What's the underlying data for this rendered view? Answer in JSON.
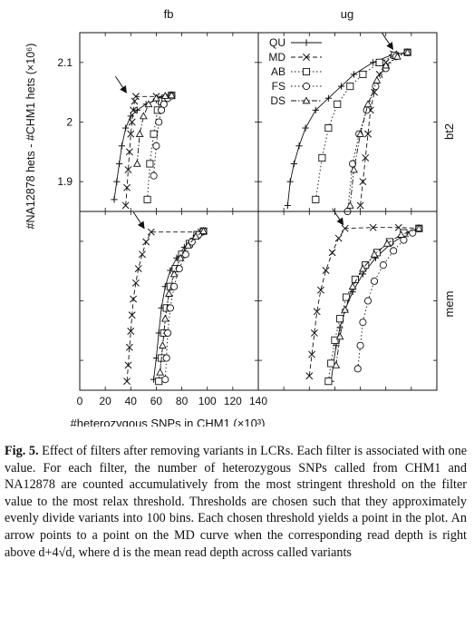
{
  "chart_data": {
    "type": "line",
    "columns": [
      "fb",
      "ug"
    ],
    "rows": [
      "bt2",
      "mem"
    ],
    "ylabel": "#NA12878 hets - #CHM1 hets (×10⁶)",
    "xlabel": "#heterozygous SNPs in CHM1 (×10³)",
    "x_ticks": [
      "0",
      "20",
      "40",
      "60",
      "80",
      "100",
      "120",
      "140"
    ],
    "xlim": [
      0,
      140
    ],
    "y_ticks_bt2": [
      "1.9",
      "2",
      "2.1"
    ],
    "ylim_bt2": [
      1.85,
      2.15
    ],
    "legend_placement": "top-left of top-right panel",
    "series": [
      {
        "name": "QU",
        "marker": "plus",
        "dash": "solid"
      },
      {
        "name": "MD",
        "marker": "cross",
        "dash": "dashed"
      },
      {
        "name": "AB",
        "marker": "square",
        "dash": "dotted"
      },
      {
        "name": "FS",
        "marker": "circle",
        "dash": "dotted"
      },
      {
        "name": "DS",
        "marker": "triangle",
        "dash": "dashdot"
      }
    ],
    "panels": [
      {
        "col": "fb",
        "row": "bt2",
        "arrow_at": [
          38,
          2.043
        ],
        "data": {
          "QU": [
            [
              27,
              1.87
            ],
            [
              29,
              1.9
            ],
            [
              31,
              1.93
            ],
            [
              33,
              1.96
            ],
            [
              36,
              1.99
            ],
            [
              40,
              2.01
            ],
            [
              45,
              2.02
            ],
            [
              52,
              2.03
            ],
            [
              60,
              2.037
            ],
            [
              68,
              2.042
            ],
            [
              72,
              2.044
            ]
          ],
          "MD": [
            [
              36,
              1.86
            ],
            [
              37,
              1.89
            ],
            [
              38,
              1.92
            ],
            [
              39,
              1.95
            ],
            [
              40,
              1.98
            ],
            [
              41,
              2.0
            ],
            [
              42,
              2.02
            ],
            [
              43,
              2.035
            ],
            [
              44,
              2.043
            ],
            [
              60,
              2.043
            ],
            [
              72,
              2.044
            ]
          ],
          "AB": [
            [
              53,
              1.87
            ],
            [
              55,
              1.93
            ],
            [
              58,
              1.98
            ],
            [
              61,
              2.02
            ],
            [
              64,
              2.035
            ],
            [
              67,
              2.04
            ],
            [
              72,
              2.045
            ]
          ],
          "FS": [
            [
              58,
              1.91
            ],
            [
              60,
              1.96
            ],
            [
              62,
              2.0
            ],
            [
              64,
              2.02
            ],
            [
              66,
              2.03
            ],
            [
              69,
              2.04
            ],
            [
              72,
              2.044
            ]
          ],
          "DS": [
            [
              45,
              1.93
            ],
            [
              47,
              1.98
            ],
            [
              50,
              2.01
            ],
            [
              54,
              2.03
            ],
            [
              60,
              2.04
            ],
            [
              67,
              2.044
            ],
            [
              72,
              2.045
            ]
          ]
        }
      },
      {
        "col": "ug",
        "row": "bt2",
        "arrow_at": [
          107,
          2.116
        ],
        "data": {
          "QU": [
            [
              23,
              1.86
            ],
            [
              25,
              1.9
            ],
            [
              28,
              1.93
            ],
            [
              32,
              1.96
            ],
            [
              37,
              1.99
            ],
            [
              45,
              2.02
            ],
            [
              55,
              2.04
            ],
            [
              65,
              2.06
            ],
            [
              75,
              2.08
            ],
            [
              90,
              2.1
            ],
            [
              105,
              2.113
            ],
            [
              117,
              2.117
            ]
          ],
          "MD": [
            [
              80,
              1.86
            ],
            [
              82,
              1.9
            ],
            [
              84,
              1.94
            ],
            [
              86,
              1.98
            ],
            [
              88,
              2.02
            ],
            [
              91,
              2.05
            ],
            [
              95,
              2.08
            ],
            [
              100,
              2.1
            ],
            [
              106,
              2.114
            ],
            [
              117,
              2.117
            ]
          ],
          "AB": [
            [
              45,
              1.87
            ],
            [
              50,
              1.94
            ],
            [
              55,
              1.99
            ],
            [
              62,
              2.03
            ],
            [
              72,
              2.06
            ],
            [
              82,
              2.08
            ],
            [
              95,
              2.1
            ],
            [
              107,
              2.112
            ],
            [
              117,
              2.117
            ]
          ],
          "FS": [
            [
              70,
              1.85
            ],
            [
              74,
              1.93
            ],
            [
              79,
              1.98
            ],
            [
              85,
              2.02
            ],
            [
              92,
              2.06
            ],
            [
              100,
              2.09
            ],
            [
              108,
              2.11
            ],
            [
              117,
              2.117
            ]
          ],
          "DS": [
            [
              72,
              1.86
            ],
            [
              75,
              1.92
            ],
            [
              80,
              1.98
            ],
            [
              86,
              2.03
            ],
            [
              93,
              2.07
            ],
            [
              100,
              2.095
            ],
            [
              109,
              2.11
            ],
            [
              117,
              2.117
            ]
          ]
        }
      },
      {
        "col": "fb",
        "row": "mem",
        "arrow_at": [
          52,
          0.885
        ],
        "data": {
          "QU": [
            [
              58,
              0.06
            ],
            [
              60,
              0.18
            ],
            [
              62,
              0.32
            ],
            [
              64,
              0.46
            ],
            [
              67,
              0.58
            ],
            [
              71,
              0.67
            ],
            [
              76,
              0.74
            ],
            [
              82,
              0.8
            ],
            [
              89,
              0.85
            ],
            [
              96,
              0.88
            ]
          ],
          "MD": [
            [
              37,
              0.05
            ],
            [
              38,
              0.14
            ],
            [
              39,
              0.24
            ],
            [
              40,
              0.33
            ],
            [
              41,
              0.42
            ],
            [
              42,
              0.51
            ],
            [
              44,
              0.6
            ],
            [
              46,
              0.68
            ],
            [
              49,
              0.76
            ],
            [
              52,
              0.83
            ],
            [
              56,
              0.885
            ],
            [
              95,
              0.885
            ],
            [
              97,
              0.89
            ]
          ],
          "AB": [
            [
              62,
              0.05
            ],
            [
              64,
              0.18
            ],
            [
              66,
              0.32
            ],
            [
              68,
              0.46
            ],
            [
              71,
              0.58
            ],
            [
              75,
              0.68
            ],
            [
              80,
              0.76
            ],
            [
              86,
              0.82
            ],
            [
              92,
              0.87
            ],
            [
              97,
              0.89
            ]
          ],
          "FS": [
            [
              67,
              0.06
            ],
            [
              68,
              0.18
            ],
            [
              69,
              0.32
            ],
            [
              71,
              0.46
            ],
            [
              74,
              0.58
            ],
            [
              78,
              0.68
            ],
            [
              83,
              0.76
            ],
            [
              88,
              0.83
            ],
            [
              93,
              0.87
            ],
            [
              97,
              0.89
            ]
          ],
          "DS": [
            [
              63,
              0.1
            ],
            [
              65,
              0.25
            ],
            [
              67,
              0.4
            ],
            [
              70,
              0.54
            ],
            [
              74,
              0.65
            ],
            [
              79,
              0.74
            ],
            [
              85,
              0.81
            ],
            [
              91,
              0.86
            ],
            [
              97,
              0.89
            ]
          ]
        }
      },
      {
        "col": "ug",
        "row": "mem",
        "arrow_at": [
          68,
          0.905
        ],
        "data": {
          "QU": [
            [
              57,
              0.05
            ],
            [
              59,
              0.15
            ],
            [
              61,
              0.25
            ],
            [
              64,
              0.35
            ],
            [
              68,
              0.45
            ],
            [
              74,
              0.55
            ],
            [
              82,
              0.65
            ],
            [
              92,
              0.74
            ],
            [
              104,
              0.82
            ],
            [
              115,
              0.87
            ],
            [
              126,
              0.905
            ]
          ],
          "MD": [
            [
              40,
              0.08
            ],
            [
              42,
              0.2
            ],
            [
              44,
              0.32
            ],
            [
              46,
              0.44
            ],
            [
              49,
              0.56
            ],
            [
              53,
              0.67
            ],
            [
              58,
              0.77
            ],
            [
              63,
              0.85
            ],
            [
              68,
              0.905
            ],
            [
              90,
              0.91
            ],
            [
              110,
              0.91
            ],
            [
              126,
              0.905
            ]
          ],
          "AB": [
            [
              55,
              0.05
            ],
            [
              57,
              0.15
            ],
            [
              60,
              0.28
            ],
            [
              64,
              0.4
            ],
            [
              69,
              0.52
            ],
            [
              76,
              0.62
            ],
            [
              84,
              0.7
            ],
            [
              93,
              0.77
            ],
            [
              103,
              0.83
            ],
            [
              114,
              0.88
            ],
            [
              126,
              0.905
            ]
          ],
          "FS": [
            [
              78,
              0.12
            ],
            [
              80,
              0.25
            ],
            [
              82,
              0.38
            ],
            [
              86,
              0.5
            ],
            [
              91,
              0.61
            ],
            [
              98,
              0.7
            ],
            [
              106,
              0.78
            ],
            [
              114,
              0.84
            ],
            [
              121,
              0.88
            ],
            [
              126,
              0.905
            ]
          ],
          "DS": [
            [
              61,
              0.14
            ],
            [
              64,
              0.3
            ],
            [
              68,
              0.45
            ],
            [
              74,
              0.58
            ],
            [
              82,
              0.68
            ],
            [
              91,
              0.76
            ],
            [
              101,
              0.82
            ],
            [
              112,
              0.87
            ],
            [
              126,
              0.905
            ]
          ]
        }
      }
    ]
  },
  "caption": {
    "label": "Fig. 5.",
    "text": "Effect of filters after removing variants in LCRs. Each filter is associated with one value. For each filter, the number of heterozygous SNPs called from CHM1 and NA12878 are counted accumulatively from the most stringent threshold on the filter value to the most relax threshold. Thresholds are chosen such that they approximately evenly divide variants into 100 bins. Each chosen threshold yields a point in the plot. An arrow points to a point on the MD curve when the corresponding read depth is right above d+4√d, where d is the mean read depth across called variants"
  }
}
